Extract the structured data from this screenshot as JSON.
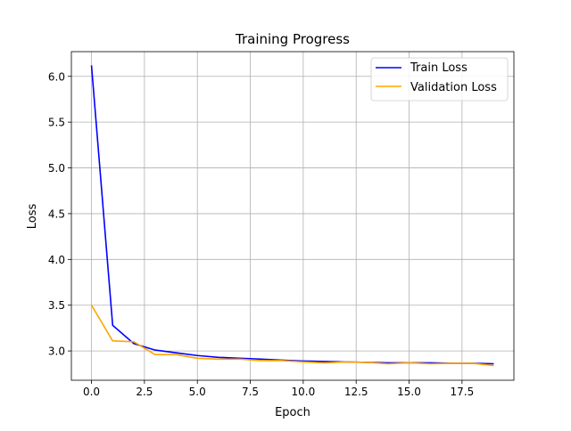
{
  "chart_data": {
    "type": "line",
    "title": "Training Progress",
    "xlabel": "Epoch",
    "ylabel": "Loss",
    "xlim": [
      -0.95,
      19.95
    ],
    "ylim": [
      2.68,
      6.27
    ],
    "grid": true,
    "legend_position": "top-right",
    "x": [
      0,
      1,
      2,
      3,
      4,
      5,
      6,
      7,
      8,
      9,
      10,
      11,
      12,
      13,
      14,
      15,
      16,
      17,
      18,
      19
    ],
    "series": [
      {
        "name": "Train Loss",
        "color": "#0000ff",
        "values": [
          6.12,
          3.28,
          3.08,
          3.01,
          2.98,
          2.95,
          2.93,
          2.92,
          2.91,
          2.9,
          2.89,
          2.885,
          2.88,
          2.875,
          2.87,
          2.87,
          2.87,
          2.865,
          2.865,
          2.86
        ]
      },
      {
        "name": "Validation Loss",
        "color": "#ffa500",
        "values": [
          3.5,
          3.11,
          3.1,
          2.96,
          2.96,
          2.92,
          2.91,
          2.91,
          2.895,
          2.895,
          2.88,
          2.87,
          2.88,
          2.875,
          2.86,
          2.87,
          2.86,
          2.865,
          2.865,
          2.84
        ]
      }
    ],
    "x_ticks": [
      {
        "value": 0,
        "label": "0.0"
      },
      {
        "value": 2.5,
        "label": "2.5"
      },
      {
        "value": 5,
        "label": "5.0"
      },
      {
        "value": 7.5,
        "label": "7.5"
      },
      {
        "value": 10,
        "label": "10.0"
      },
      {
        "value": 12.5,
        "label": "12.5"
      },
      {
        "value": 15,
        "label": "15.0"
      },
      {
        "value": 17.5,
        "label": "17.5"
      }
    ],
    "y_ticks": [
      {
        "value": 3.0,
        "label": "3.0"
      },
      {
        "value": 3.5,
        "label": "3.5"
      },
      {
        "value": 4.0,
        "label": "4.0"
      },
      {
        "value": 4.5,
        "label": "4.5"
      },
      {
        "value": 5.0,
        "label": "5.0"
      },
      {
        "value": 5.5,
        "label": "5.5"
      },
      {
        "value": 6.0,
        "label": "6.0"
      }
    ]
  }
}
